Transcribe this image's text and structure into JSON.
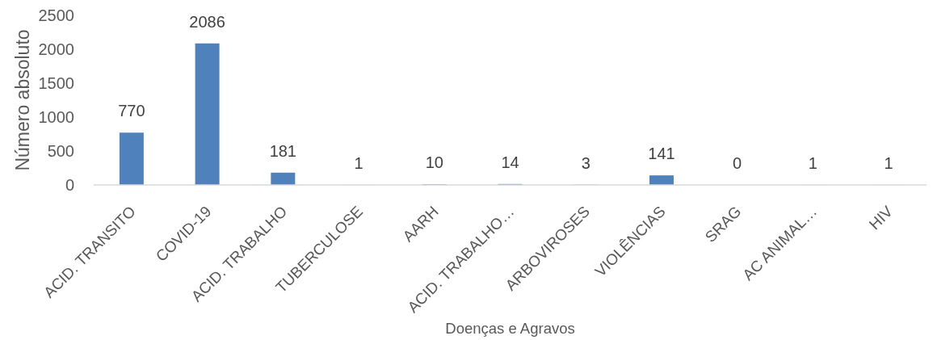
{
  "chart_data": {
    "type": "bar",
    "xlabel": "Doenças e Agravos",
    "ylabel": "Número absoluto",
    "categories": [
      "ACID. TRANSITO",
      "COVID-19",
      "ACID. TRABALHO",
      "TUBERCULOSE",
      "AARH",
      "ACID. TRABALHO…",
      "ARBOVIROSES",
      "VIOLÊNCIAS",
      "SRAG",
      "AC ANIMAL…",
      "HIV"
    ],
    "values": [
      770,
      2086,
      181,
      1,
      10,
      14,
      3,
      141,
      0,
      1,
      1
    ],
    "color": "#4f81bd",
    "ylim": [
      0,
      2500
    ],
    "yticks": [
      0,
      500,
      1000,
      1500,
      2000,
      2500
    ],
    "data_labels": true,
    "grid": false
  }
}
